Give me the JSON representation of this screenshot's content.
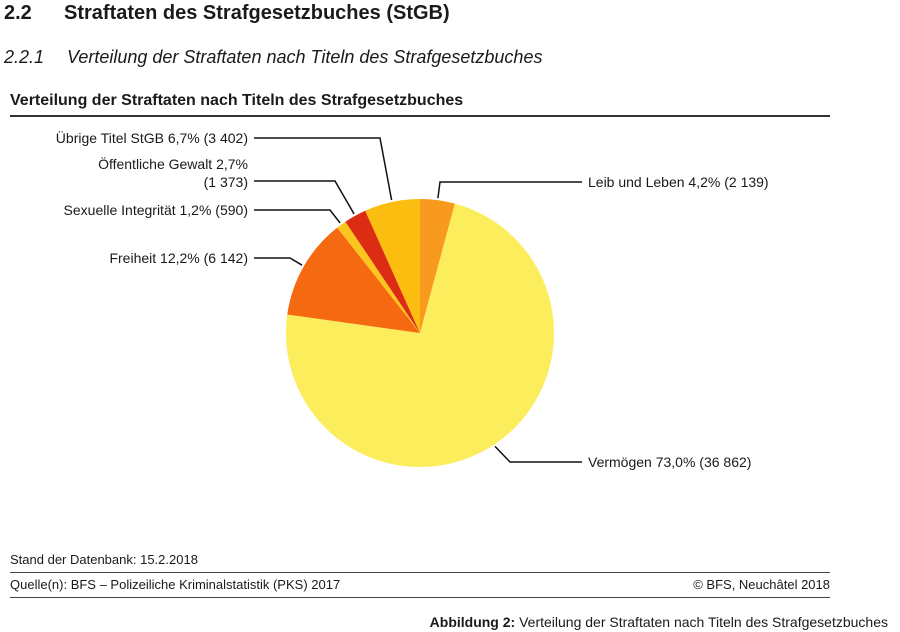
{
  "section": {
    "number": "2.2",
    "title": "Straftaten des Strafgesetzbuches (StGB)"
  },
  "subsection": {
    "number": "2.2.1",
    "title": "Verteilung der Straftaten nach Titeln des Strafgesetzbuches"
  },
  "chart_data": {
    "type": "pie",
    "title": "Verteilung der Straftaten nach Titeln des Strafgesetzbuches",
    "slices": [
      {
        "name": "Leib und Leben",
        "percent": 4.2,
        "value": 2139,
        "label": "Leib und Leben 4,2% (2 139)",
        "color": "#f79a1e"
      },
      {
        "name": "Vermögen",
        "percent": 73.0,
        "value": 36862,
        "label": "Vermögen 73,0% (36 862)",
        "color": "#fced5c"
      },
      {
        "name": "Freiheit",
        "percent": 12.2,
        "value": 6142,
        "label": "Freiheit 12,2% (6 142)",
        "color": "#f56a10"
      },
      {
        "name": "Sexuelle Integrität",
        "percent": 1.2,
        "value": 590,
        "label": "Sexuelle Integrität 1,2% (590)",
        "color": "#fbc61c"
      },
      {
        "name": "Öffentliche Gewalt",
        "percent": 2.7,
        "value": 1373,
        "label": "Öffentliche Gewalt 2,7%",
        "label2": "(1 373)",
        "color": "#dc2d14"
      },
      {
        "name": "Übrige Titel StGB",
        "percent": 6.7,
        "value": 3402,
        "label": "Übrige Titel StGB 6,7% (3 402)",
        "color": "#fbbd0f"
      }
    ]
  },
  "footer": {
    "stand": "Stand der Datenbank: 15.2.2018",
    "source": "Quelle(n): BFS – Polizeiliche Kriminalstatistik (PKS) 2017",
    "copyright": "© BFS, Neuchâtel 2018"
  },
  "caption": {
    "label": "Abbildung 2:",
    "text": " Verteilung der Straftaten nach Titeln des Strafgesetzbuches"
  }
}
